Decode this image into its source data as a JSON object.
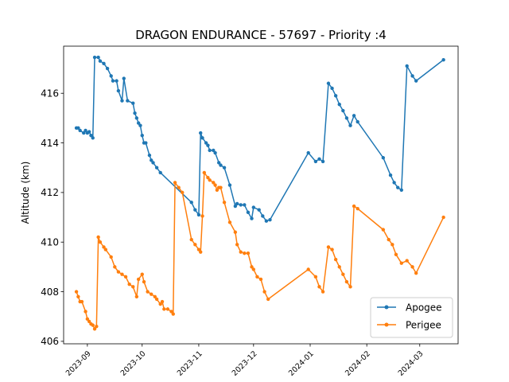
{
  "chart_data": {
    "type": "line",
    "title": "DRAGON ENDURANCE - 57697 - Priority :4",
    "xlabel": "",
    "ylabel": "Altitude (km)",
    "x_axis": {
      "type": "date",
      "range": [
        "2023-08-19",
        "2024-03-22"
      ],
      "ticks": [
        "2023-09-01",
        "2023-10-01",
        "2023-11-01",
        "2023-12-01",
        "2024-01-01",
        "2024-02-01",
        "2024-03-01"
      ],
      "tick_labels": [
        "2023-09",
        "2023-10",
        "2023-11",
        "2023-12",
        "2024-01",
        "2024-02",
        "2024-03"
      ]
    },
    "y_axis": {
      "range": [
        405.9,
        417.9
      ],
      "ticks": [
        406,
        408,
        410,
        412,
        414,
        416
      ],
      "tick_labels": [
        "406",
        "408",
        "410",
        "412",
        "414",
        "416"
      ]
    },
    "grid": false,
    "legend": {
      "position": "bottom-right",
      "entries": [
        "Apogee",
        "Perigee"
      ]
    },
    "series": [
      {
        "name": "Apogee",
        "color": "#1f77b4",
        "points": [
          [
            "2023-08-26",
            414.6
          ],
          [
            "2023-08-27",
            414.6
          ],
          [
            "2023-08-28",
            414.5
          ],
          [
            "2023-08-30",
            414.4
          ],
          [
            "2023-08-31",
            414.5
          ],
          [
            "2023-09-01",
            414.4
          ],
          [
            "2023-09-02",
            414.45
          ],
          [
            "2023-09-03",
            414.3
          ],
          [
            "2023-09-04",
            414.2
          ],
          [
            "2023-09-05",
            417.45
          ],
          [
            "2023-09-07",
            417.45
          ],
          [
            "2023-09-08",
            417.3
          ],
          [
            "2023-09-10",
            417.2
          ],
          [
            "2023-09-12",
            417.0
          ],
          [
            "2023-09-14",
            416.7
          ],
          [
            "2023-09-15",
            416.5
          ],
          [
            "2023-09-17",
            416.5
          ],
          [
            "2023-09-18",
            416.1
          ],
          [
            "2023-09-20",
            415.7
          ],
          [
            "2023-09-21",
            416.6
          ],
          [
            "2023-09-23",
            415.7
          ],
          [
            "2023-09-26",
            415.6
          ],
          [
            "2023-09-27",
            415.2
          ],
          [
            "2023-09-28",
            415.0
          ],
          [
            "2023-09-29",
            414.8
          ],
          [
            "2023-09-30",
            414.7
          ],
          [
            "2023-10-01",
            414.3
          ],
          [
            "2023-10-02",
            414.0
          ],
          [
            "2023-10-03",
            414.0
          ],
          [
            "2023-10-05",
            413.5
          ],
          [
            "2023-10-06",
            413.3
          ],
          [
            "2023-10-07",
            413.2
          ],
          [
            "2023-10-09",
            413.0
          ],
          [
            "2023-10-11",
            412.8
          ],
          [
            "2023-10-28",
            411.6
          ],
          [
            "2023-10-30",
            411.3
          ],
          [
            "2023-11-01",
            411.1
          ],
          [
            "2023-11-02",
            414.4
          ],
          [
            "2023-11-03",
            414.2
          ],
          [
            "2023-11-05",
            414.0
          ],
          [
            "2023-11-06",
            413.9
          ],
          [
            "2023-11-07",
            413.7
          ],
          [
            "2023-11-09",
            413.7
          ],
          [
            "2023-11-10",
            413.6
          ],
          [
            "2023-11-12",
            413.2
          ],
          [
            "2023-11-13",
            413.1
          ],
          [
            "2023-11-15",
            413.0
          ],
          [
            "2023-11-18",
            412.3
          ],
          [
            "2023-11-21",
            411.45
          ],
          [
            "2023-11-22",
            411.55
          ],
          [
            "2023-11-24",
            411.5
          ],
          [
            "2023-11-26",
            411.5
          ],
          [
            "2023-11-28",
            411.2
          ],
          [
            "2023-11-30",
            410.95
          ],
          [
            "2023-12-01",
            411.4
          ],
          [
            "2023-12-04",
            411.3
          ],
          [
            "2023-12-06",
            411.05
          ],
          [
            "2023-12-08",
            410.85
          ],
          [
            "2023-12-10",
            410.9
          ],
          [
            "2023-12-31",
            413.6
          ],
          [
            "2024-01-04",
            413.25
          ],
          [
            "2024-01-06",
            413.35
          ],
          [
            "2024-01-08",
            413.25
          ],
          [
            "2024-01-11",
            416.4
          ],
          [
            "2024-01-13",
            416.2
          ],
          [
            "2024-01-15",
            415.9
          ],
          [
            "2024-01-17",
            415.55
          ],
          [
            "2024-01-19",
            415.3
          ],
          [
            "2024-01-21",
            415.0
          ],
          [
            "2024-01-23",
            414.7
          ],
          [
            "2024-01-25",
            415.1
          ],
          [
            "2024-01-27",
            414.85
          ],
          [
            "2024-02-10",
            413.4
          ],
          [
            "2024-02-14",
            412.7
          ],
          [
            "2024-02-16",
            412.4
          ],
          [
            "2024-02-18",
            412.2
          ],
          [
            "2024-02-20",
            412.1
          ],
          [
            "2024-02-23",
            417.1
          ],
          [
            "2024-02-26",
            416.7
          ],
          [
            "2024-02-28",
            416.5
          ],
          [
            "2024-03-14",
            417.35
          ]
        ]
      },
      {
        "name": "Perigee",
        "color": "#ff7f0e",
        "points": [
          [
            "2023-08-26",
            408.0
          ],
          [
            "2023-08-27",
            407.8
          ],
          [
            "2023-08-28",
            407.6
          ],
          [
            "2023-08-29",
            407.6
          ],
          [
            "2023-08-31",
            407.2
          ],
          [
            "2023-09-01",
            406.9
          ],
          [
            "2023-09-02",
            406.8
          ],
          [
            "2023-09-03",
            406.7
          ],
          [
            "2023-09-04",
            406.65
          ],
          [
            "2023-09-05",
            406.5
          ],
          [
            "2023-09-06",
            406.6
          ],
          [
            "2023-09-07",
            410.2
          ],
          [
            "2023-09-08",
            410.0
          ],
          [
            "2023-09-10",
            409.8
          ],
          [
            "2023-09-11",
            409.7
          ],
          [
            "2023-09-14",
            409.4
          ],
          [
            "2023-09-16",
            409.0
          ],
          [
            "2023-09-18",
            408.8
          ],
          [
            "2023-09-20",
            408.7
          ],
          [
            "2023-09-22",
            408.6
          ],
          [
            "2023-09-24",
            408.3
          ],
          [
            "2023-09-26",
            408.2
          ],
          [
            "2023-09-28",
            407.8
          ],
          [
            "2023-09-29",
            408.5
          ],
          [
            "2023-10-01",
            408.7
          ],
          [
            "2023-10-02",
            408.4
          ],
          [
            "2023-10-04",
            408.0
          ],
          [
            "2023-10-06",
            407.9
          ],
          [
            "2023-10-08",
            407.8
          ],
          [
            "2023-10-09",
            407.7
          ],
          [
            "2023-10-11",
            407.5
          ],
          [
            "2023-10-12",
            407.6
          ],
          [
            "2023-10-13",
            407.3
          ],
          [
            "2023-10-15",
            407.3
          ],
          [
            "2023-10-17",
            407.2
          ],
          [
            "2023-10-18",
            407.1
          ],
          [
            "2023-10-19",
            412.4
          ],
          [
            "2023-10-21",
            412.2
          ],
          [
            "2023-10-23",
            412.0
          ],
          [
            "2023-10-28",
            410.1
          ],
          [
            "2023-10-30",
            409.9
          ],
          [
            "2023-11-01",
            409.7
          ],
          [
            "2023-11-02",
            409.6
          ],
          [
            "2023-11-03",
            411.05
          ],
          [
            "2023-11-04",
            412.8
          ],
          [
            "2023-11-06",
            412.6
          ],
          [
            "2023-11-07",
            412.5
          ],
          [
            "2023-11-09",
            412.4
          ],
          [
            "2023-11-10",
            412.3
          ],
          [
            "2023-11-11",
            412.1
          ],
          [
            "2023-11-12",
            412.2
          ],
          [
            "2023-11-13",
            412.2
          ],
          [
            "2023-11-15",
            411.6
          ],
          [
            "2023-11-18",
            410.8
          ],
          [
            "2023-11-21",
            410.4
          ],
          [
            "2023-11-22",
            409.9
          ],
          [
            "2023-11-24",
            409.6
          ],
          [
            "2023-11-26",
            409.55
          ],
          [
            "2023-11-28",
            409.55
          ],
          [
            "2023-11-30",
            409.0
          ],
          [
            "2023-12-01",
            408.9
          ],
          [
            "2023-12-03",
            408.6
          ],
          [
            "2023-12-05",
            408.5
          ],
          [
            "2023-12-07",
            408.0
          ],
          [
            "2023-12-09",
            407.7
          ],
          [
            "2023-12-31",
            408.9
          ],
          [
            "2024-01-04",
            408.6
          ],
          [
            "2024-01-06",
            408.2
          ],
          [
            "2024-01-08",
            408.0
          ],
          [
            "2024-01-11",
            409.8
          ],
          [
            "2024-01-13",
            409.7
          ],
          [
            "2024-01-15",
            409.3
          ],
          [
            "2024-01-17",
            409.0
          ],
          [
            "2024-01-19",
            408.7
          ],
          [
            "2024-01-21",
            408.4
          ],
          [
            "2024-01-23",
            408.2
          ],
          [
            "2024-01-25",
            411.45
          ],
          [
            "2024-01-27",
            411.35
          ],
          [
            "2024-02-10",
            410.5
          ],
          [
            "2024-02-13",
            410.1
          ],
          [
            "2024-02-15",
            409.9
          ],
          [
            "2024-02-17",
            409.5
          ],
          [
            "2024-02-20",
            409.15
          ],
          [
            "2024-02-23",
            409.25
          ],
          [
            "2024-02-26",
            409.0
          ],
          [
            "2024-02-28",
            408.75
          ],
          [
            "2024-03-14",
            411.0
          ]
        ]
      }
    ]
  }
}
